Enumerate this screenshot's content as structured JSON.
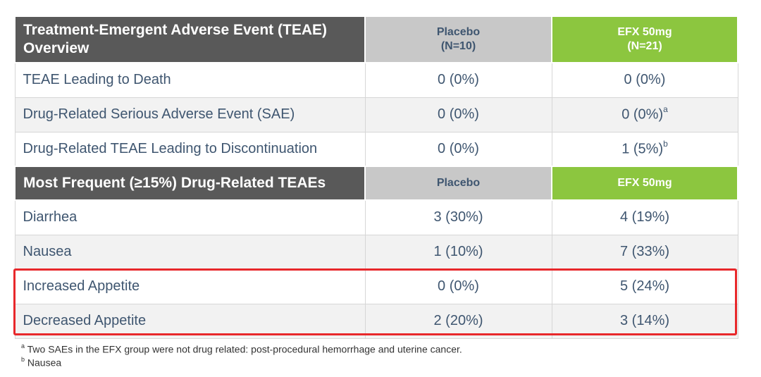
{
  "table": {
    "header1": {
      "line1": "Treatment-Emergent Adverse Event (TEAE)",
      "line2": "Overview",
      "placebo_line1": "Placebo",
      "placebo_line2": "(N=10)",
      "efx_line1": "EFX 50mg",
      "efx_line2": "(N=21)"
    },
    "overview_rows": [
      {
        "label": "TEAE Leading to Death",
        "placebo": "0 (0%)",
        "efx": "0 (0%)",
        "efx_note": ""
      },
      {
        "label": "Drug-Related Serious Adverse Event (SAE)",
        "placebo": "0 (0%)",
        "efx": "0 (0%)",
        "efx_note": "a"
      },
      {
        "label": "Drug-Related TEAE Leading to Discontinuation",
        "placebo": "0 (0%)",
        "efx": "1 (5%)",
        "efx_note": "b"
      }
    ],
    "header2": {
      "label": "Most Frequent (≥15%) Drug-Related TEAEs",
      "placebo": "Placebo",
      "efx": "EFX 50mg"
    },
    "frequent_rows": [
      {
        "label": "Diarrhea",
        "placebo": "3 (30%)",
        "efx": "4 (19%)"
      },
      {
        "label": "Nausea",
        "placebo": "1 (10%)",
        "efx": "7 (33%)"
      },
      {
        "label": "Increased Appetite",
        "placebo": "0 (0%)",
        "efx": "5 (24%)"
      },
      {
        "label": "Decreased Appetite",
        "placebo": "2 (20%)",
        "efx": "3 (14%)"
      }
    ]
  },
  "footnotes": [
    {
      "mark": "a",
      "text": "Two SAEs in the EFX group were not drug related: post-procedural hemorrhage and uterine cancer."
    },
    {
      "mark": "b",
      "text": "Nausea"
    }
  ],
  "colors": {
    "header_dark": "#595959",
    "header_gray": "#c8c8c8",
    "header_green": "#8cc63f",
    "text": "#3f5670",
    "highlight": "#e8282b"
  }
}
